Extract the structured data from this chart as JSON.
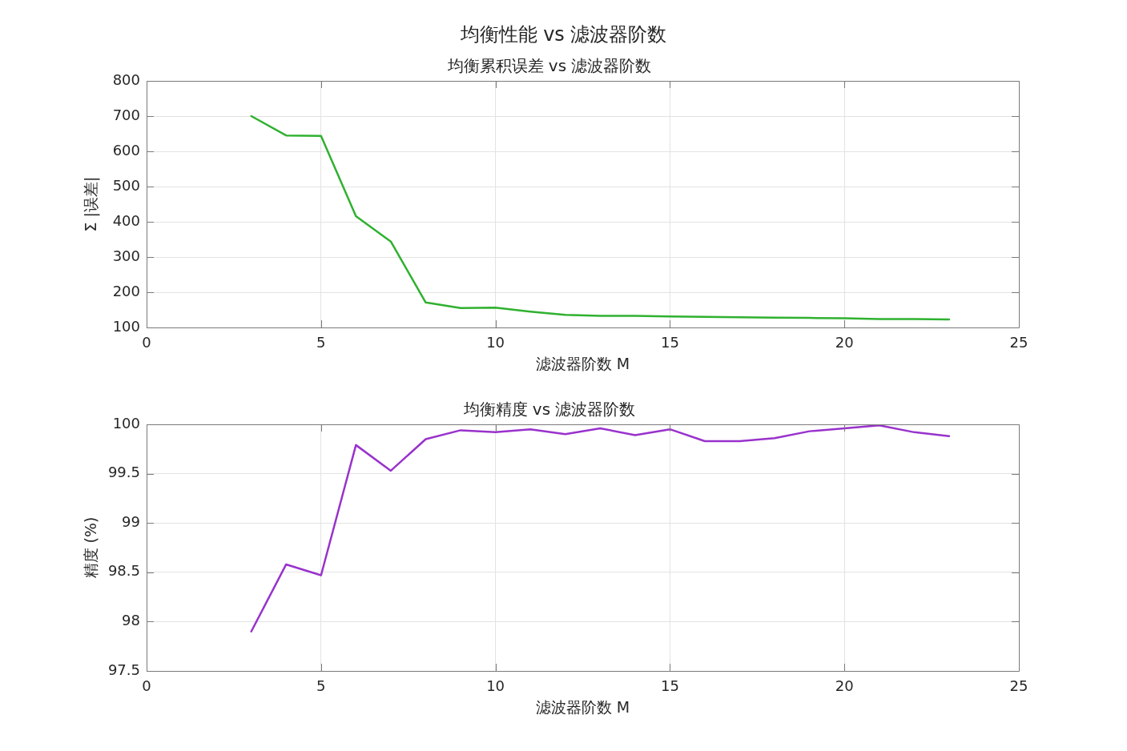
{
  "chart_data": [
    {
      "type": "other",
      "title": "均衡性能 vs 滤波器阶数"
    },
    {
      "type": "line",
      "title": "均衡累积误差 vs 滤波器阶数",
      "xlabel": "滤波器阶数 M",
      "ylabel": "Σ |误差|",
      "x": [
        3,
        4,
        5,
        6,
        7,
        8,
        9,
        10,
        11,
        12,
        13,
        14,
        15,
        16,
        17,
        18,
        19,
        20,
        21,
        22,
        23
      ],
      "series": [
        {
          "color": "#2fb12f",
          "values": [
            700,
            645,
            644,
            416,
            344,
            171,
            155,
            156,
            145,
            136,
            133,
            133,
            131,
            130,
            129,
            128,
            127,
            126,
            124,
            124,
            123
          ]
        }
      ],
      "xlim": [
        0,
        25
      ],
      "xticks": [
        0,
        5,
        10,
        15,
        20,
        25
      ],
      "ylim": [
        100,
        800
      ],
      "yticks": [
        100,
        200,
        300,
        400,
        500,
        600,
        700,
        800
      ],
      "grid": true
    },
    {
      "type": "line",
      "title": "均衡精度 vs 滤波器阶数",
      "xlabel": "滤波器阶数 M",
      "ylabel": "精度 (%)",
      "x": [
        3,
        4,
        5,
        6,
        7,
        8,
        9,
        10,
        11,
        12,
        13,
        14,
        15,
        16,
        17,
        18,
        19,
        20,
        21,
        22,
        23
      ],
      "series": [
        {
          "color": "#9932cc",
          "values": [
            97.9,
            98.58,
            98.47,
            99.79,
            99.53,
            99.85,
            99.94,
            99.92,
            99.95,
            99.9,
            99.96,
            99.89,
            99.95,
            99.83,
            99.83,
            99.86,
            99.93,
            99.96,
            99.99,
            99.92,
            99.88
          ]
        }
      ],
      "xlim": [
        0,
        25
      ],
      "xticks": [
        0,
        5,
        10,
        15,
        20,
        25
      ],
      "ylim": [
        97.5,
        100
      ],
      "yticks": [
        97.5,
        98,
        98.5,
        99,
        99.5,
        100
      ],
      "grid": true
    }
  ]
}
